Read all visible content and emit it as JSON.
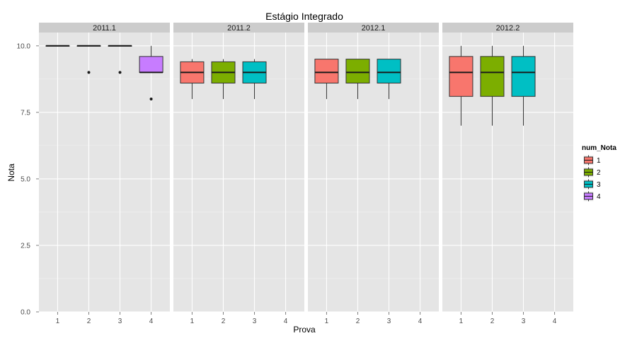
{
  "chart_data": {
    "type": "box",
    "title": "Estágio Integrado",
    "xlabel": "Prova",
    "ylabel": "Nota",
    "ylim": [
      0,
      10.5
    ],
    "y_ticks": [
      "0.0",
      "2.5",
      "5.0",
      "7.5",
      "10.0"
    ],
    "y_tick_values": [
      0,
      2.5,
      5,
      7.5,
      10
    ],
    "categories": [
      "1",
      "2",
      "3",
      "4"
    ],
    "grid": true,
    "legend": {
      "title": "num_Nota",
      "position": "right",
      "entries": [
        "1",
        "2",
        "3",
        "4"
      ]
    },
    "colors": {
      "1": "#F8766D",
      "2": "#7CAE00",
      "3": "#00BFC4",
      "4": "#C77CFF",
      "panel_bg": "#E5E5E5",
      "strip_bg": "#CCCCCC",
      "grid": "#FFFFFF"
    },
    "facets": [
      {
        "label": "2011.1",
        "boxes": [
          {
            "x": "1",
            "min": 10,
            "q1": 10,
            "median": 10,
            "q3": 10,
            "max": 10,
            "outliers": []
          },
          {
            "x": "2",
            "min": 10,
            "q1": 10,
            "median": 10,
            "q3": 10,
            "max": 10,
            "outliers": [
              9
            ]
          },
          {
            "x": "3",
            "min": 10,
            "q1": 10,
            "median": 10,
            "q3": 10,
            "max": 10,
            "outliers": [
              9
            ]
          },
          {
            "x": "4",
            "min": 9,
            "q1": 9,
            "median": 9,
            "q3": 9.6,
            "max": 10,
            "outliers": [
              8
            ]
          }
        ]
      },
      {
        "label": "2011.2",
        "boxes": [
          {
            "x": "1",
            "min": 8,
            "q1": 8.6,
            "median": 9,
            "q3": 9.4,
            "max": 9.5,
            "outliers": []
          },
          {
            "x": "2",
            "min": 8,
            "q1": 8.6,
            "median": 9,
            "q3": 9.4,
            "max": 9.5,
            "outliers": []
          },
          {
            "x": "3",
            "min": 8,
            "q1": 8.6,
            "median": 9,
            "q3": 9.4,
            "max": 9.5,
            "outliers": []
          }
        ]
      },
      {
        "label": "2012.1",
        "boxes": [
          {
            "x": "1",
            "min": 8,
            "q1": 8.6,
            "median": 9,
            "q3": 9.5,
            "max": 9.5,
            "outliers": []
          },
          {
            "x": "2",
            "min": 8,
            "q1": 8.6,
            "median": 9,
            "q3": 9.5,
            "max": 9.5,
            "outliers": []
          },
          {
            "x": "3",
            "min": 8,
            "q1": 8.6,
            "median": 9,
            "q3": 9.5,
            "max": 9.5,
            "outliers": []
          }
        ]
      },
      {
        "label": "2012.2",
        "boxes": [
          {
            "x": "1",
            "min": 7,
            "q1": 8.1,
            "median": 9,
            "q3": 9.6,
            "max": 10,
            "outliers": []
          },
          {
            "x": "2",
            "min": 7,
            "q1": 8.1,
            "median": 9,
            "q3": 9.6,
            "max": 10,
            "outliers": []
          },
          {
            "x": "3",
            "min": 7,
            "q1": 8.1,
            "median": 9,
            "q3": 9.6,
            "max": 10,
            "outliers": []
          }
        ]
      }
    ]
  }
}
